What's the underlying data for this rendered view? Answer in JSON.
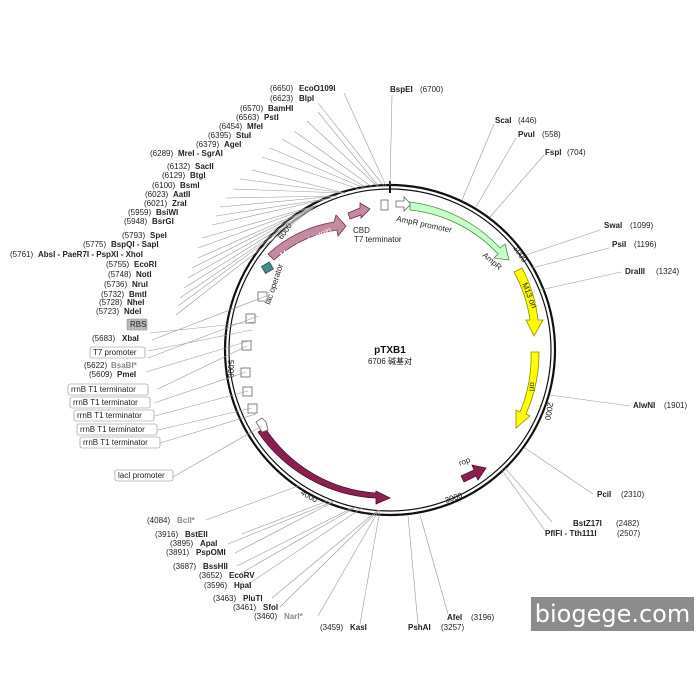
{
  "plasmid": {
    "name": "pTXB1",
    "length_label": "6706 碱基对",
    "total_bp": 6706
  },
  "ticks": [
    "1000",
    "2000",
    "3000",
    "4000",
    "5000",
    "6000"
  ],
  "sites_right": [
    {
      "name": "BspEI",
      "pos": "(6700)"
    },
    {
      "name": "ScaI",
      "pos": "(446)"
    },
    {
      "name": "PvuI",
      "pos": "(558)"
    },
    {
      "name": "FspI",
      "pos": "(704)"
    },
    {
      "name": "SwaI",
      "pos": "(1099)"
    },
    {
      "name": "PsiI",
      "pos": "(1196)"
    },
    {
      "name": "DraIII",
      "pos": "(1324)"
    },
    {
      "name": "AlwNI",
      "pos": "(1901)"
    },
    {
      "name": "PciI",
      "pos": "(2310)"
    },
    {
      "name": "BstZ17I",
      "pos": "(2482)"
    },
    {
      "name": "PflFI - Tth111I",
      "pos": "(2507)"
    },
    {
      "name": "AfeI",
      "pos": "(3196)"
    },
    {
      "name": "PshAI",
      "pos": "(3257)"
    }
  ],
  "sites_top_left": [
    {
      "name": "EcoO109I",
      "pos": "(6650)"
    },
    {
      "name": "BlpI",
      "pos": "(6623)"
    },
    {
      "name": "BamHI",
      "pos": "(6570)"
    },
    {
      "name": "PstI",
      "pos": "(6563)"
    },
    {
      "name": "MfeI",
      "pos": "(6454)"
    },
    {
      "name": "StuI",
      "pos": "(6395)"
    },
    {
      "name": "AgeI",
      "pos": "(6379)"
    },
    {
      "name": "MreI - SgrAI",
      "pos": "(6289)"
    },
    {
      "name": "SacII",
      "pos": "(6132)"
    },
    {
      "name": "BtgI",
      "pos": "(6129)"
    },
    {
      "name": "BsmI",
      "pos": "(6100)"
    },
    {
      "name": "AatII",
      "pos": "(6023)"
    },
    {
      "name": "ZraI",
      "pos": "(6021)"
    },
    {
      "name": "BsiWI",
      "pos": "(5959)"
    },
    {
      "name": "BsrGI",
      "pos": "(5948)"
    },
    {
      "name": "SpeI",
      "pos": "(5793)"
    },
    {
      "name": "BspQI - SapI",
      "pos": "(5775)"
    },
    {
      "name": "AbsI - PaeR7I - PspXI - XhoI",
      "pos": "(5761)"
    },
    {
      "name": "EcoRI",
      "pos": "(5755)"
    },
    {
      "name": "NotI",
      "pos": "(5748)"
    },
    {
      "name": "NruI",
      "pos": "(5736)"
    },
    {
      "name": "BmtI",
      "pos": "(5732)"
    },
    {
      "name": "NheI",
      "pos": "(5728)"
    },
    {
      "name": "NdeI",
      "pos": "(5723)"
    },
    {
      "name": "XbaI",
      "pos": "(5683)"
    },
    {
      "name": "BsaBI*",
      "pos": "(5622)"
    },
    {
      "name": "PmeI",
      "pos": "(5609)"
    }
  ],
  "sites_bottom_left": [
    {
      "name": "BclI*",
      "pos": "(4084)"
    },
    {
      "name": "BstEII",
      "pos": "(3916)"
    },
    {
      "name": "ApaI",
      "pos": "(3895)"
    },
    {
      "name": "PspOMI",
      "pos": "(3891)"
    },
    {
      "name": "BssHII",
      "pos": "(3687)"
    },
    {
      "name": "EcoRV",
      "pos": "(3652)"
    },
    {
      "name": "HpaI",
      "pos": "(3596)"
    },
    {
      "name": "PluTI",
      "pos": "(3463)"
    },
    {
      "name": "SfoI",
      "pos": "(3461)"
    },
    {
      "name": "NarI*",
      "pos": "(3460)"
    },
    {
      "name": "KasI",
      "pos": "(3459)"
    }
  ],
  "boxed_labels": [
    "RBS",
    "T7 promoter",
    "rrnB T1 terminator",
    "rrnB T1 terminator",
    "rrnB T1 terminator",
    "rrnB T1 terminator",
    "rrnB T1 terminator",
    "lacI promoter"
  ],
  "features": {
    "mxe": "Mxe GyrA intein",
    "cbd": "CBD",
    "t7term": "T7 terminator",
    "ampr_promoter": "AmpR promoter",
    "ampr": "AmpR",
    "m13": "M13 ori",
    "ori": "ori",
    "rop": "rop",
    "laci": "lacI",
    "lac_operator": "lac operator"
  },
  "colors": {
    "mxe": "#c48aa0",
    "cbd": "#c48aa0",
    "ampr": "#c8ffc8",
    "ori": "#ffff00",
    "laci": "#8a2050",
    "rop": "#8a2050",
    "lacop": "#4a8a8a"
  },
  "watermark": "biogege.com"
}
